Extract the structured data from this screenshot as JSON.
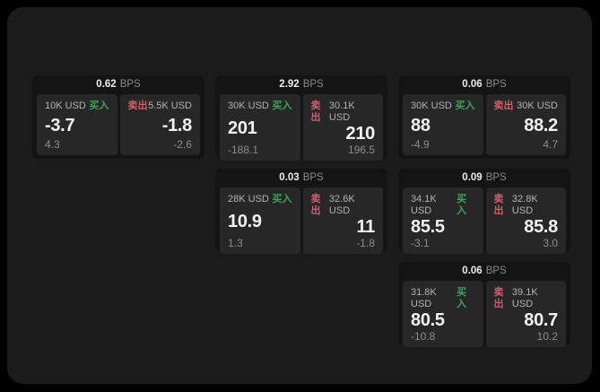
{
  "labels": {
    "bps": "BPS",
    "buy": "买入",
    "sell": "卖出"
  },
  "colors": {
    "background": "#000000",
    "surface": "#1b1b1b",
    "card": "#141414",
    "panel": "#272727",
    "buy": "#3da35a",
    "sell": "#ce5f6f"
  },
  "cards": [
    {
      "bps": "0.62",
      "col": 1,
      "row": 1,
      "buy": {
        "amount": "10K USD",
        "price": "-3.7",
        "delta": "4.3"
      },
      "sell": {
        "amount": "5.5K USD",
        "price": "-1.8",
        "delta": "-2.6"
      }
    },
    {
      "bps": "2.92",
      "col": 2,
      "row": 1,
      "buy": {
        "amount": "30K USD",
        "price": "201",
        "delta": "-188.1"
      },
      "sell": {
        "amount": "30.1K USD",
        "price": "210",
        "delta": "196.5"
      }
    },
    {
      "bps": "0.06",
      "col": 3,
      "row": 1,
      "buy": {
        "amount": "30K USD",
        "price": "88",
        "delta": "-4.9"
      },
      "sell": {
        "amount": "30K USD",
        "price": "88.2",
        "delta": "4.7"
      }
    },
    {
      "bps": "0.03",
      "col": 2,
      "row": 2,
      "buy": {
        "amount": "28K USD",
        "price": "10.9",
        "delta": "1.3"
      },
      "sell": {
        "amount": "32.6K USD",
        "price": "11",
        "delta": "-1.8"
      }
    },
    {
      "bps": "0.09",
      "col": 3,
      "row": 2,
      "buy": {
        "amount": "34.1K USD",
        "price": "85.5",
        "delta": "-3.1"
      },
      "sell": {
        "amount": "32.8K USD",
        "price": "85.8",
        "delta": "3.0"
      }
    },
    {
      "bps": "0.06",
      "col": 3,
      "row": 3,
      "buy": {
        "amount": "31.8K USD",
        "price": "80.5",
        "delta": "-10.8"
      },
      "sell": {
        "amount": "39.1K USD",
        "price": "80.7",
        "delta": "10.2"
      }
    }
  ]
}
